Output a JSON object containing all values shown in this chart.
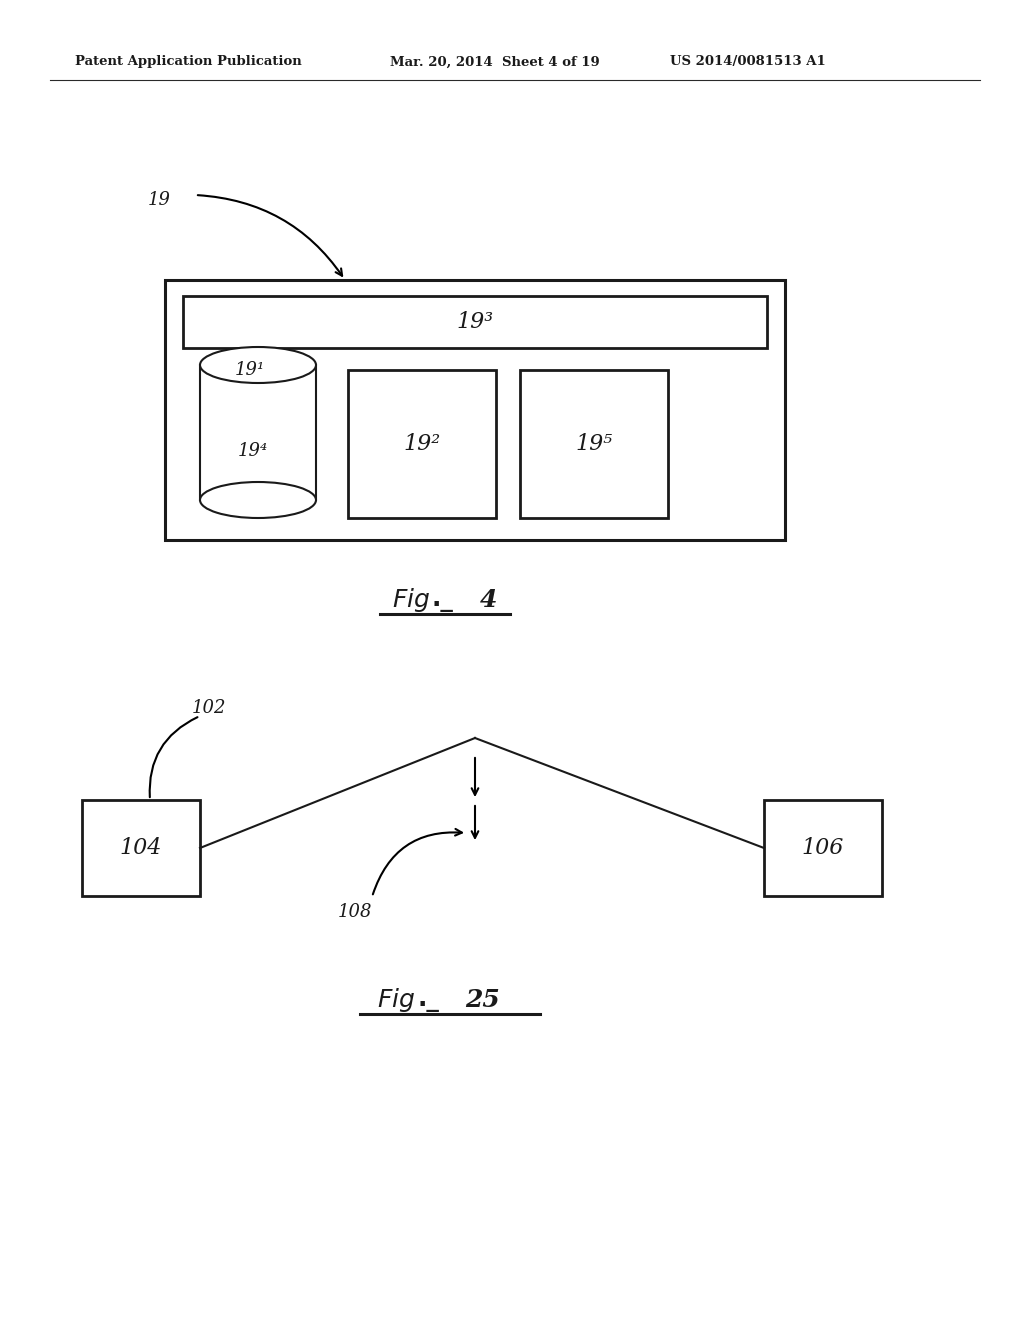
{
  "background_color": "#ffffff",
  "header_text_left": "Patent Application Publication",
  "header_text_mid": "Mar. 20, 2014  Sheet 4 of 19",
  "header_text_right": "US 2014/0081513 A1",
  "label_19": "19",
  "label_193": "19³",
  "label_191": "19¹",
  "label_194": "19⁴",
  "label_192": "19²",
  "label_195": "19⁵",
  "label_102": "102",
  "label_104": "104",
  "label_106": "106",
  "label_108": "108",
  "fig4_num": "4",
  "fig25_num": "25"
}
